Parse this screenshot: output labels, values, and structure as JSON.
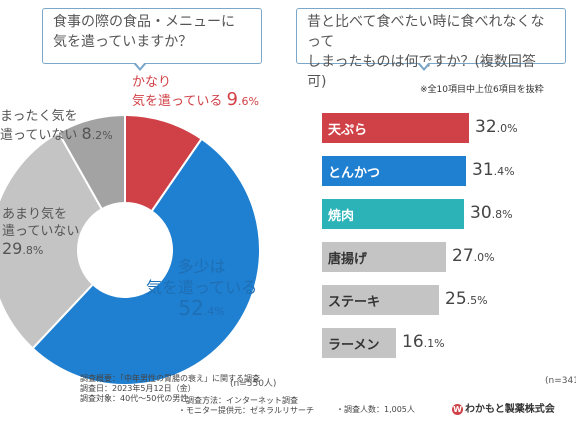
{
  "left_question": {
    "line1": "食事の際の食品・メニューに",
    "line2": "気を遣っていますか？"
  },
  "right_question": {
    "line1": "昔と比べて食べたい時に食べれなくなって",
    "line2": "しまったものは何ですか？(複数回答可)"
  },
  "right_note": "※全10項目中上位6項目を抜粋",
  "pie_labels": {
    "kanari": {
      "line1": "かなり",
      "line2": "気を遣っている",
      "pct": "9",
      "dec": ".6",
      "unit": "%"
    },
    "tashou": {
      "line1": "多少は",
      "line2": "気を遣っている",
      "pct": "52",
      "dec": ".4",
      "unit": "%"
    },
    "amari": {
      "line1": "あまり気を",
      "line2": "遣っていない",
      "pct": "29",
      "dec": ".8",
      "unit": "%"
    },
    "mattaku": {
      "line1": "まったく気を",
      "line2": "遣っていない",
      "pct": "8",
      "dec": ".2",
      "unit": "%"
    }
  },
  "left_n": "(n=550人)",
  "right_n": "(n=341",
  "footer": {
    "overview": "調査概要：「中年男性の胃腸の衰え」に関する調査",
    "date": "調査日：2023年5月12日（金）",
    "target": "調査対象：40代〜50代の男性",
    "method": "・調査方法：インターネット調査",
    "provider": "・モニター提供元：ゼネラルリサーチ",
    "people": "・調査人数：1,005人",
    "company": "わかもと製薬株式会"
  },
  "chart_data": [
    {
      "type": "pie",
      "title": "食事の際の食品・メニューに気を遣っていますか？",
      "categories": [
        "かなり気を遣っている",
        "多少は気を遣っている",
        "あまり気を遣っていない",
        "まったく気を遣っていない"
      ],
      "values": [
        9.6,
        52.4,
        29.8,
        8.2
      ],
      "colors": [
        "#d04147",
        "#1f7fd0",
        "#c4c4c4",
        "#a3a3a3"
      ],
      "n": 550
    },
    {
      "type": "bar",
      "orientation": "horizontal",
      "title": "昔と比べて食べたい時に食べれなくなってしまったものは何ですか？(複数回答可)",
      "categories": [
        "天ぷら",
        "とんかつ",
        "焼肉",
        "唐揚げ",
        "ステーキ",
        "ラーメン"
      ],
      "values": [
        32.0,
        31.4,
        30.8,
        27.0,
        25.5,
        16.1
      ],
      "value_text": [
        [
          "32",
          ".0"
        ],
        [
          "31",
          ".4"
        ],
        [
          "30",
          ".8"
        ],
        [
          "27",
          ".0"
        ],
        [
          "25",
          ".5"
        ],
        [
          "16",
          ".1"
        ]
      ],
      "unit": "%",
      "colors": [
        "#d04147",
        "#1f7fd0",
        "#2bb3b8",
        "#c4c4c4",
        "#c4c4c4",
        "#c4c4c4"
      ],
      "label_colors": [
        "#ffffff",
        "#ffffff",
        "#ffffff",
        "#333333",
        "#333333",
        "#333333"
      ]
    }
  ]
}
